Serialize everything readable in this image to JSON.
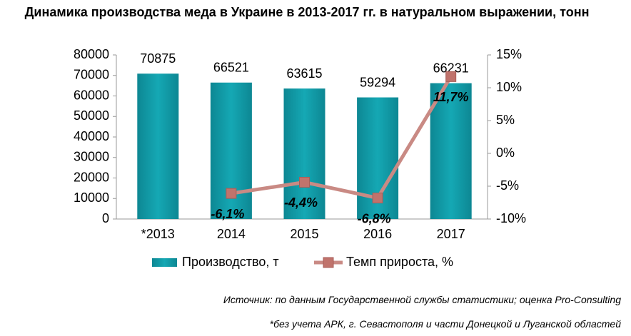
{
  "chart_data": {
    "type": "bar",
    "title": "Динамика производства меда в Украине в 2013-2017 гг. в натуральном выражении, тонн",
    "categories": [
      "*2013",
      "2014",
      "2015",
      "2016",
      "2017"
    ],
    "series": [
      {
        "name": "Производство, т",
        "type": "bar",
        "color": "#119aa6",
        "values": [
          70875,
          66521,
          63615,
          59294,
          66231
        ]
      },
      {
        "name": "Темп прироста, %",
        "type": "line",
        "axis": "y2",
        "color": "#c98a84",
        "values": [
          null,
          -6.1,
          -4.4,
          -6.8,
          11.7
        ],
        "value_labels": [
          null,
          "-6,1%",
          "-4,4%",
          "-6,8%",
          "11,7%"
        ]
      }
    ],
    "ylim": [
      0,
      80000
    ],
    "yticks": [
      0,
      10000,
      20000,
      30000,
      40000,
      50000,
      60000,
      70000,
      80000
    ],
    "y2lim": [
      -10,
      15
    ],
    "y2ticks": [
      {
        "value": -10,
        "label": "-10%"
      },
      {
        "value": -5,
        "label": "-5%"
      },
      {
        "value": 0,
        "label": "0%"
      },
      {
        "value": 5,
        "label": "5%"
      },
      {
        "value": 10,
        "label": "10%"
      },
      {
        "value": 15,
        "label": "15%"
      }
    ],
    "grid": false,
    "legend": "bottom",
    "source": "Источник: по данным Государственной службы статистики; оценка Pro-Consulting",
    "note": "*без учета АРК, г. Севастополя и части Донецкой и Луганской областей"
  }
}
